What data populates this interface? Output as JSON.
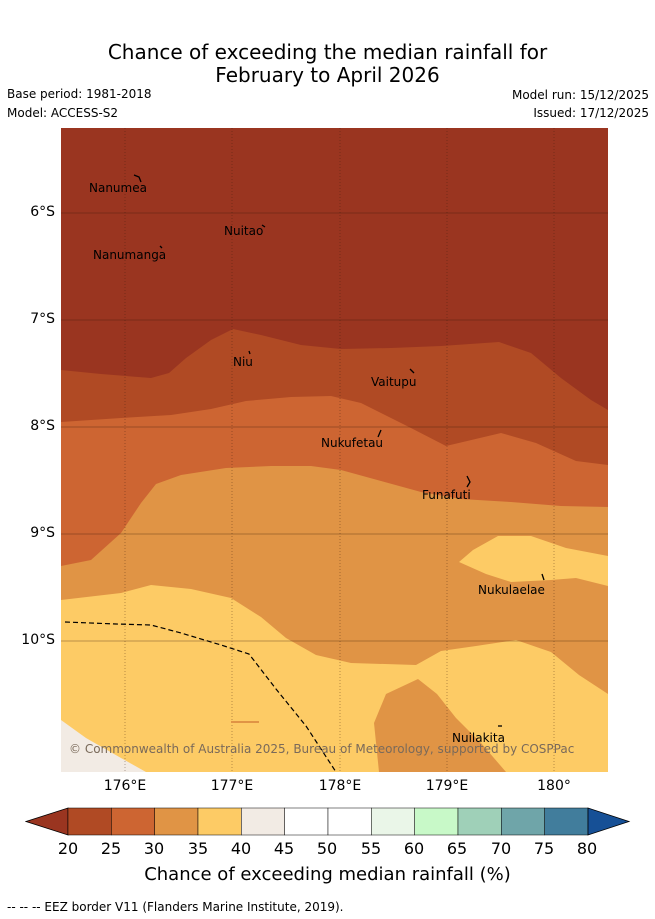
{
  "title": {
    "line1": "Chance of exceeding the median rainfall for",
    "line2": "February to April 2026"
  },
  "meta": {
    "base_period": "Base period: 1981-2018",
    "model": "Model: ACCESS-S2",
    "model_run": "Model run: 15/12/2025",
    "issued": "Issued: 17/12/2025"
  },
  "axes": {
    "lat_labels": [
      "6°S",
      "7°S",
      "8°S",
      "9°S",
      "10°S"
    ],
    "lon_labels": [
      "176°E",
      "177°E",
      "178°E",
      "179°E",
      "180°"
    ]
  },
  "places": [
    "Nanumea",
    "Nuitao",
    "Nanumanga",
    "Niu",
    "Vaitupu",
    "Nukufetau",
    "Funafuti",
    "Nukulaelae",
    "Nuilakita"
  ],
  "copyright": "© Commonwealth of Australia 2025, Bureau of Meteorology, supported by COSPPac",
  "colorbar": {
    "ticks": [
      "20",
      "25",
      "30",
      "35",
      "40",
      "45",
      "50",
      "55",
      "60",
      "65",
      "70",
      "75",
      "80"
    ],
    "colors": [
      "#9a3520",
      "#b04a24",
      "#cd6532",
      "#e09445",
      "#fdcb65",
      "#f2ebe4",
      "#ffffff",
      "#ffffff",
      "#eaf6e8",
      "#c8f9c8",
      "#9fd0b8",
      "#6fa5a9",
      "#417d9c",
      "#165096"
    ],
    "label": "Chance of exceeding median rainfall (%)"
  },
  "eez_note": "--  --  -- EEZ border V11 (Flanders Marine Institute, 2019)."
}
